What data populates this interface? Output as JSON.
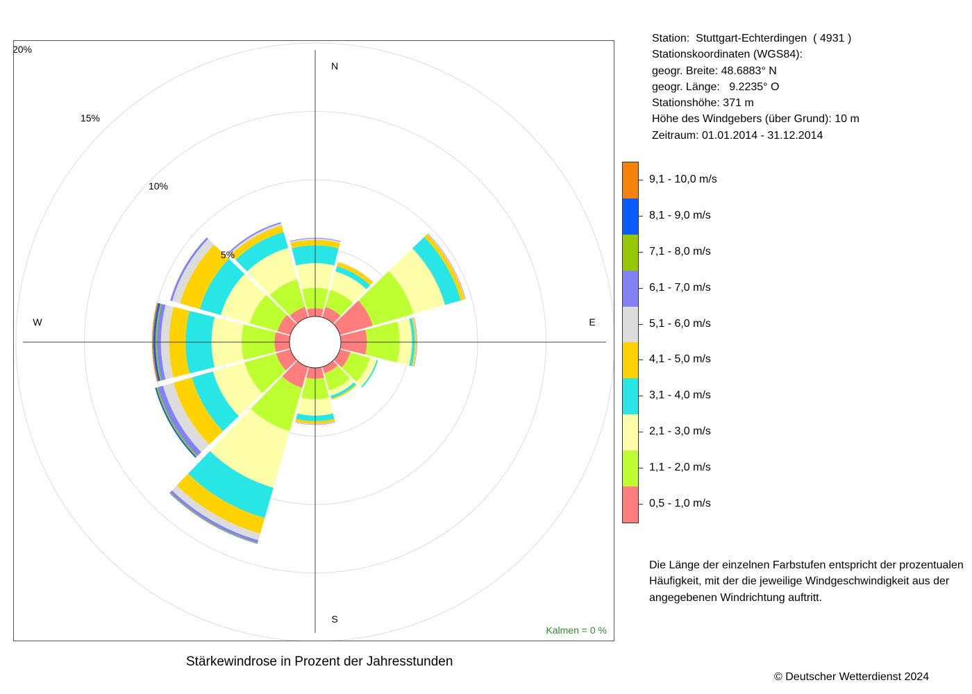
{
  "station": {
    "line1": "Station:  Stuttgart-Echterdingen  ( 4931 )",
    "line2": "Stationskoordinaten (WGS84):",
    "line3": "geogr. Breite: 48.6883° N",
    "line4": "geogr. Länge:   9.2235° O",
    "line5": "Stationshöhe: 371 m",
    "line6": "Höhe des Windgebers (über Grund): 10 m",
    "line7": "Zeitraum: 01.01.2014 - 31.12.2014"
  },
  "note": "Die Länge der einzelnen Farbstufen entspricht der prozentualen Häufigkeit, mit der die jeweilige Windgeschwindigkeit aus der angegebenen Windrichtung auftritt.",
  "chart_title": "Stärkewindrose in Prozent der Jahresstunden",
  "copyright": "© Deutscher Wetterdienst  2024",
  "calm": "Kalmen  =  0 %",
  "legend": [
    {
      "label": "9,1 - 10,0 m/s",
      "color": "#F5820A"
    },
    {
      "label": "8,1 - 9,0 m/s",
      "color": "#0A5AFF"
    },
    {
      "label": "7,1 - 8,0 m/s",
      "color": "#96C800"
    },
    {
      "label": "6,1 - 7,0 m/s",
      "color": "#8282F5"
    },
    {
      "label": "5,1 - 6,0 m/s",
      "color": "#DCDCDC"
    },
    {
      "label": "4,1 - 5,0 m/s",
      "color": "#FFD200"
    },
    {
      "label": "3,1 - 4,0 m/s",
      "color": "#28E6E6"
    },
    {
      "label": "2,1 - 3,0 m/s",
      "color": "#FFFFAA"
    },
    {
      "label": "1,1 - 2,0 m/s",
      "color": "#BEFF32"
    },
    {
      "label": "0,5 - 1,0 m/s",
      "color": "#FF7D7D"
    }
  ],
  "chart_data": {
    "type": "wind_rose",
    "title": "Stärkewindrose in Prozent der Jahresstunden",
    "compass": [
      "N",
      "E",
      "S",
      "W"
    ],
    "ring_labels": [
      "5%",
      "10%",
      "15%",
      "20%"
    ],
    "ring_values": [
      5,
      10,
      15,
      20
    ],
    "directions": [
      0,
      30,
      60,
      90,
      120,
      150,
      180,
      210,
      240,
      270,
      300,
      330
    ],
    "bins": [
      "0,5 - 1,0 m/s",
      "1,1 - 2,0 m/s",
      "2,1 - 3,0 m/s",
      "3,1 - 4,0 m/s",
      "4,1 - 5,0 m/s",
      "5,1 - 6,0 m/s",
      "6,1 - 7,0 m/s",
      "7,1 - 8,0 m/s",
      "8,1 - 9,0 m/s",
      "9,1 - 10,0 m/s"
    ],
    "colors": [
      "#FF7D7D",
      "#BEFF32",
      "#FFFFAA",
      "#28E6E6",
      "#FFD200",
      "#DCDCDC",
      "#8282F5",
      "#96C800",
      "#0A5AFF",
      "#F5820A"
    ],
    "values": [
      [
        0.6,
        1.5,
        1.8,
        1.3,
        0.4,
        0.1,
        0.05,
        0,
        0,
        0
      ],
      [
        0.8,
        1.3,
        1.4,
        0.4,
        0.3,
        0.05,
        0,
        0,
        0,
        0
      ],
      [
        2.5,
        3.1,
        2.4,
        1.2,
        0.3,
        0.05,
        0.03,
        0,
        0,
        0
      ],
      [
        1.9,
        2.4,
        0.9,
        0.2,
        0.1,
        0.05,
        0.03,
        0,
        0,
        0
      ],
      [
        0.8,
        1.5,
        0.5,
        0.1,
        0,
        0,
        0,
        0,
        0,
        0
      ],
      [
        0.5,
        1.3,
        0.4,
        0.2,
        0.1,
        0,
        0,
        0,
        0,
        0
      ],
      [
        0.8,
        1.5,
        1.2,
        0.4,
        0.2,
        0.05,
        0.03,
        0,
        0,
        0
      ],
      [
        1.6,
        3.3,
        4.3,
        2.3,
        1.2,
        0.5,
        0.2,
        0.05,
        0.02,
        0
      ],
      [
        1.1,
        2.4,
        2.4,
        1.6,
        1.4,
        0.8,
        0.4,
        0.1,
        0.1,
        0
      ],
      [
        1.1,
        2.4,
        2.2,
        1.9,
        1.2,
        0.6,
        0.3,
        0.1,
        0.15,
        0.1
      ],
      [
        1.0,
        2.1,
        2.2,
        1.6,
        1.5,
        0.6,
        0.15,
        0,
        0,
        0
      ],
      [
        0.8,
        2.1,
        2.4,
        1.2,
        0.5,
        0.15,
        0.1,
        0,
        0,
        0
      ]
    ],
    "grid": true
  }
}
